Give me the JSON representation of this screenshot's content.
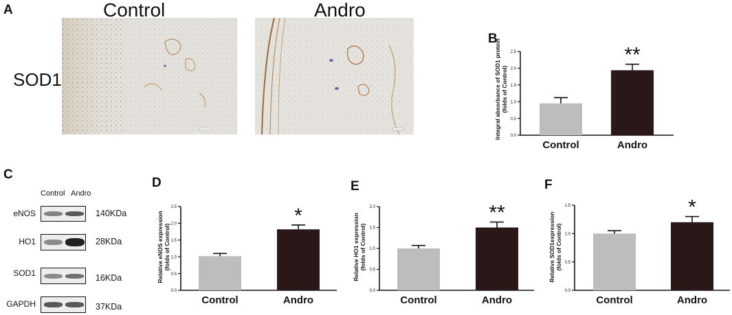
{
  "panel_a": {
    "letter": "A",
    "row_label": "SOD1",
    "images": [
      {
        "title": "Control"
      },
      {
        "title": "Andro"
      }
    ]
  },
  "panel_c": {
    "letter": "C",
    "column_labels": [
      "Control",
      "Andro"
    ],
    "rows": [
      {
        "name": "eNOS",
        "kda": "140KDa",
        "ctrl": 0.55,
        "andro": 0.7
      },
      {
        "name": "HO1",
        "kda": "28KDa",
        "ctrl": 0.5,
        "andro": 0.9
      },
      {
        "name": "SOD1",
        "kda": "16KDa",
        "ctrl": 0.5,
        "andro": 0.6
      },
      {
        "name": "GAPDH",
        "kda": "37KDa",
        "ctrl": 0.7,
        "andro": 0.7
      }
    ]
  },
  "colors": {
    "control_bar": "#bdbdbd",
    "andro_bar": "#2a1717",
    "axis": "#111111"
  },
  "chart_data": [
    {
      "letter": "B",
      "type": "bar",
      "categories": [
        "Control",
        "Andro"
      ],
      "values": [
        0.95,
        1.94
      ],
      "errors": [
        0.17,
        0.18
      ],
      "significance": [
        "",
        "**"
      ],
      "ylabel": "Integral absorbance of SOD1 protein (folds of Control)",
      "ylim": [
        0,
        2.5
      ],
      "yticks": [
        "0.0",
        "0.5",
        "1.0",
        "1.5",
        "2.0",
        "2.5"
      ],
      "tick_values": [
        0,
        0.5,
        1.0,
        1.5,
        2.0,
        2.5
      ]
    },
    {
      "letter": "D",
      "type": "bar",
      "categories": [
        "Control",
        "Andro"
      ],
      "values": [
        1.02,
        1.82
      ],
      "errors": [
        0.08,
        0.13
      ],
      "significance": [
        "",
        "*"
      ],
      "ylabel": "Relative eNOS expression (folds of Control)",
      "ylim": [
        0,
        2.5
      ],
      "yticks": [
        "0.0",
        "0.5",
        "1.0",
        "1.5",
        "2.0",
        "2.5"
      ],
      "tick_values": [
        0,
        0.5,
        1.0,
        1.5,
        2.0,
        2.5
      ]
    },
    {
      "letter": "E",
      "type": "bar",
      "categories": [
        "Control",
        "Andro"
      ],
      "values": [
        1.0,
        1.5
      ],
      "errors": [
        0.07,
        0.13
      ],
      "significance": [
        "",
        "**"
      ],
      "ylabel": "Relative HO1 expression (folds of Control)",
      "ylim": [
        0,
        2.0
      ],
      "yticks": [
        "0.0",
        "0.5",
        "1.0",
        "1.5",
        "2.0"
      ],
      "tick_values": [
        0,
        0.5,
        1.0,
        1.5,
        2.0
      ]
    },
    {
      "letter": "F",
      "type": "bar",
      "categories": [
        "Control",
        "Andro"
      ],
      "values": [
        1.0,
        1.2
      ],
      "errors": [
        0.05,
        0.1
      ],
      "significance": [
        "",
        "*"
      ],
      "ylabel": "Relative SOD1expression (folds of Control)",
      "ylim": [
        0,
        1.5
      ],
      "yticks": [
        "0.0",
        "0.5",
        "1.0",
        "1.5"
      ],
      "tick_values": [
        0,
        0.5,
        1.0,
        1.5
      ]
    }
  ]
}
